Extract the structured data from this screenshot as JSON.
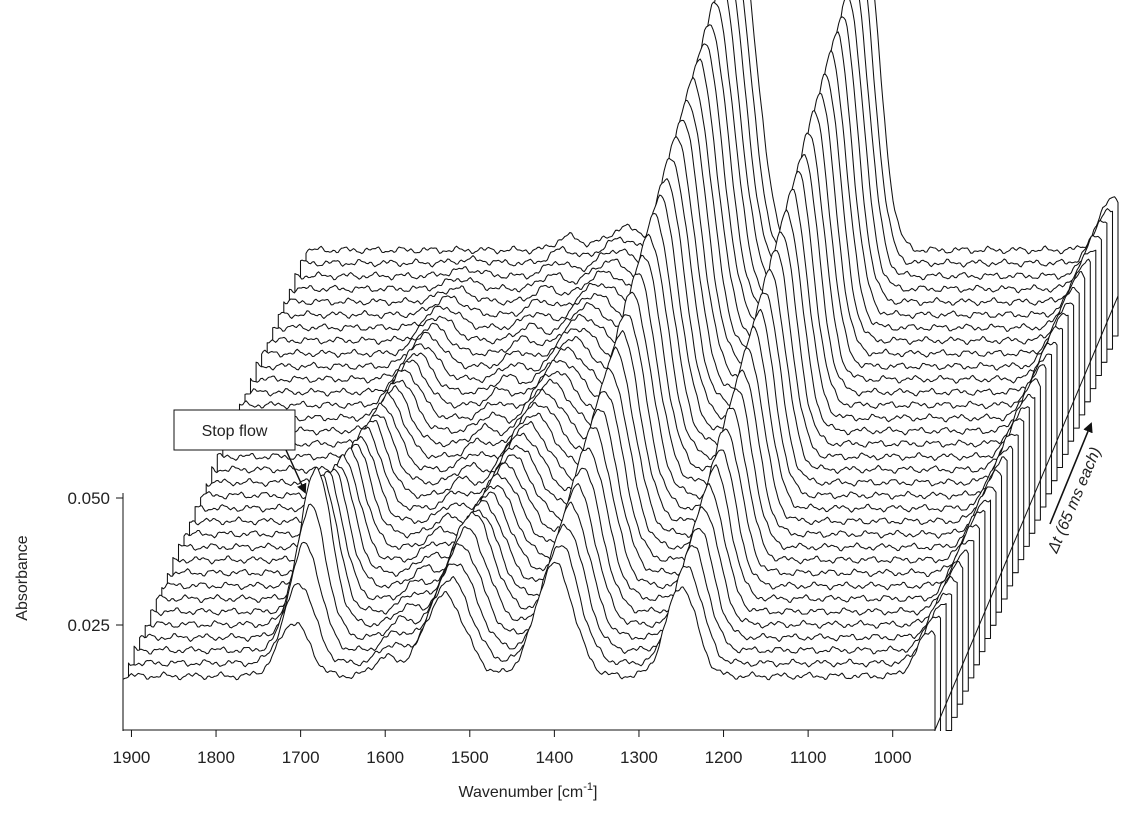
{
  "chart_data": {
    "type": "line",
    "subtype": "waterfall-3d",
    "title": "",
    "xlabel": "Wavenumber [cm",
    "xlabel_superscript": "-1",
    "xlabel_suffix": "]",
    "ylabel": "Absorbance",
    "zlabel": "Δt (65 ms each)",
    "x_ticks": [
      "1900",
      "1800",
      "1700",
      "1600",
      "1500",
      "1400",
      "1300",
      "1200",
      "1100",
      "1000"
    ],
    "x_tick_values": [
      1900,
      1800,
      1700,
      1600,
      1500,
      1400,
      1300,
      1200,
      1100,
      1000
    ],
    "y_ticks": [
      "0.025",
      "0.050"
    ],
    "y_tick_values": [
      0.025,
      0.05
    ],
    "xlim": [
      1910,
      950
    ],
    "ylim": [
      0.0,
      0.06
    ],
    "x_reversed": true,
    "grid": false,
    "annotation": {
      "text": "Stop flow",
      "target_series": 5,
      "target_x": 1690
    },
    "n_series": 34,
    "time_step_ms": 65,
    "baseline_absorbance": 0.012,
    "peaks": [
      {
        "name": "band-1710",
        "x": 1708,
        "width": 18,
        "height_start": 0.012,
        "height_peak": 0.035,
        "peak_series": 4,
        "height_end": 0.0
      },
      {
        "name": "band-1530",
        "x": 1530,
        "width": 24,
        "height_start": 0.018,
        "height_peak": 0.022,
        "peak_series": 5,
        "height_end": 0.005
      },
      {
        "name": "band-1400",
        "x": 1400,
        "width": 22,
        "height_start": 0.025,
        "height_end": 0.072
      },
      {
        "name": "band-1250",
        "x": 1250,
        "width": 18,
        "height_start": 0.02,
        "height_end": 0.07
      },
      {
        "name": "band-1600",
        "x": 1600,
        "width": 14,
        "height_start": 0.004,
        "height_end": 0.003
      },
      {
        "name": "band-950",
        "x": 955,
        "width": 16,
        "height_start": 0.01,
        "height_end": 0.012
      }
    ]
  }
}
